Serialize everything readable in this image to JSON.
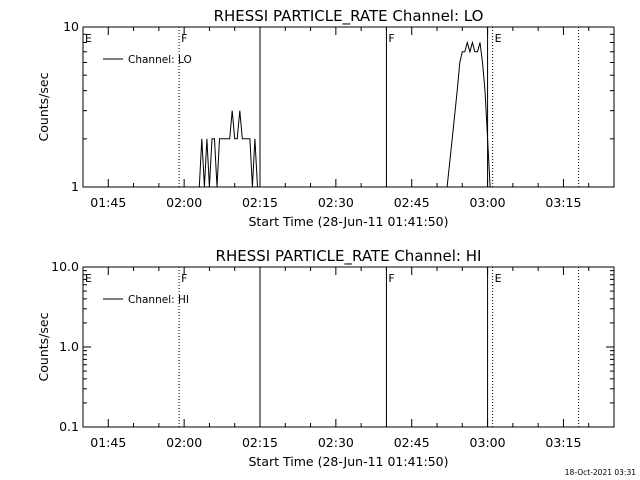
{
  "footer": {
    "timestamp": "18-Oct-2021 03:31"
  },
  "chart_data": [
    {
      "type": "line",
      "title": "RHESSI PARTICLE_RATE Channel: LO",
      "xlabel": "Start Time (28-Jun-11 01:41:50)",
      "ylabel": "Counts/sec",
      "xlim": [
        "01:40",
        "03:25"
      ],
      "ylim": [
        1,
        10
      ],
      "yscale": "log",
      "yticks": [
        "1",
        "10"
      ],
      "xticks": [
        "01:45",
        "02:00",
        "02:15",
        "02:30",
        "02:45",
        "03:00",
        "03:15"
      ],
      "legend": {
        "label": "Channel: LO",
        "position": "top-left"
      },
      "markers": [
        {
          "label": "E",
          "time": "01:40",
          "style": "dotted"
        },
        {
          "label": "F",
          "time": "01:59",
          "style": "dotted"
        },
        {
          "label": "",
          "time": "02:15",
          "style": "solid"
        },
        {
          "label": "F",
          "time": "02:40",
          "style": "solid"
        },
        {
          "label": "",
          "time": "03:00",
          "style": "solid"
        },
        {
          "label": "E",
          "time": "03:01",
          "style": "dotted"
        },
        {
          "label": "",
          "time": "03:18",
          "style": "dotted"
        }
      ],
      "series": [
        {
          "name": "",
          "segments": [
            {
              "x": [
                "02:03",
                "02:03.5",
                "02:04",
                "02:04.5",
                "02:05",
                "02:05.5",
                "02:06",
                "02:06.5",
                "02:07",
                "02:07.5",
                "02:08",
                "02:08.5",
                "02:09",
                "02:09.5",
                "02:10",
                "02:10.5",
                "02:11",
                "02:11.5",
                "02:12",
                "02:12.5",
                "02:13",
                "02:13.5",
                "02:14",
                "02:14.5"
              ],
              "y": [
                1,
                2,
                1,
                2,
                1,
                2,
                2,
                1,
                2,
                2,
                2,
                2,
                2,
                3,
                2,
                2,
                3,
                2,
                2,
                2,
                2,
                1,
                2,
                1
              ]
            },
            {
              "x": [
                "02:52",
                "02:53",
                "02:54",
                "02:54.5",
                "02:55",
                "02:55.5",
                "02:56",
                "02:56.5",
                "02:57",
                "02:57.5",
                "02:58",
                "02:58.5",
                "02:59",
                "02:59.5",
                "03:00",
                "03:00.5"
              ],
              "y": [
                1,
                2,
                4,
                6,
                7,
                7,
                8,
                7,
                8,
                7,
                7,
                8,
                6,
                4,
                2,
                1
              ]
            }
          ]
        }
      ]
    },
    {
      "type": "line",
      "title": "RHESSI PARTICLE_RATE Channel: HI",
      "xlabel": "Start Time (28-Jun-11 01:41:50)",
      "ylabel": "Counts/sec",
      "xlim": [
        "01:40",
        "03:25"
      ],
      "ylim": [
        0.1,
        10
      ],
      "yscale": "log",
      "yticks": [
        "0.1",
        "1.0",
        "10.0"
      ],
      "xticks": [
        "01:45",
        "02:00",
        "02:15",
        "02:30",
        "02:45",
        "03:00",
        "03:15"
      ],
      "legend": {
        "label": "Channel: HI",
        "position": "top-left"
      },
      "markers": [
        {
          "label": "E",
          "time": "01:40",
          "style": "dotted"
        },
        {
          "label": "F",
          "time": "01:59",
          "style": "dotted"
        },
        {
          "label": "",
          "time": "02:15",
          "style": "solid"
        },
        {
          "label": "F",
          "time": "02:40",
          "style": "solid"
        },
        {
          "label": "",
          "time": "03:00",
          "style": "solid"
        },
        {
          "label": "E",
          "time": "03:01",
          "style": "dotted"
        },
        {
          "label": "",
          "time": "03:18",
          "style": "dotted"
        }
      ],
      "series": [
        {
          "name": "",
          "segments": []
        }
      ]
    }
  ]
}
